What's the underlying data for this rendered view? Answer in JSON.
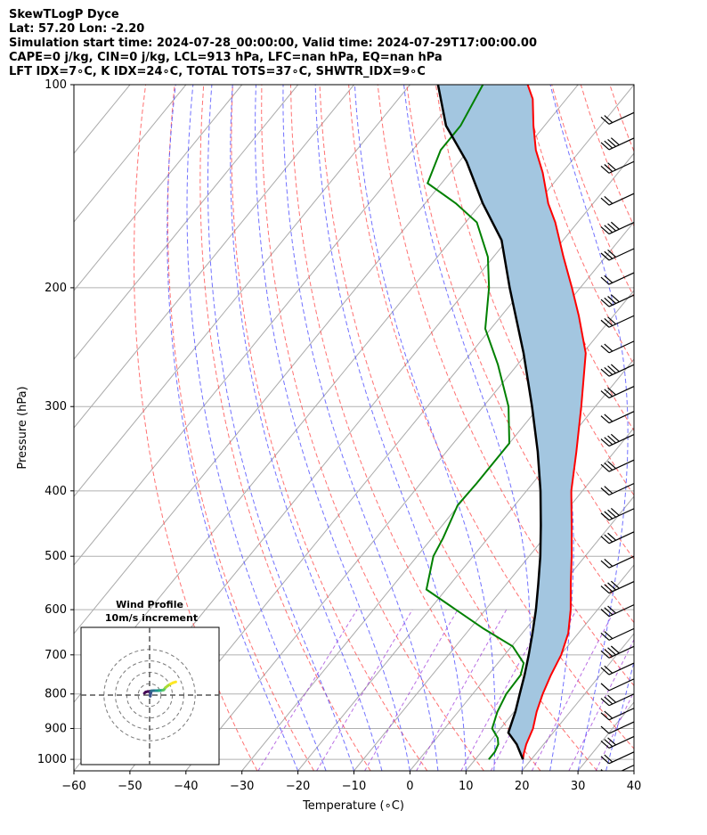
{
  "header": {
    "line1": "SkewTLogP Dyce",
    "line2": "Lat: 57.20   Lon: -2.20",
    "line3": "Simulation start time: 2024-07-28_00:00:00, Valid time: 2024-07-29T17:00:00.00",
    "line4": "CAPE=0 j/kg, CIN=0 j/kg, LCL=913 hPa, LFC=nan hPa, EQ=nan hPa",
    "line5": "LFT IDX=7∘C, K IDX=24∘C, TOTAL TOTS=37∘C, SHWTR_IDX=9∘C"
  },
  "inset": {
    "title_line1": "Wind Profile",
    "title_line2": "10m/s increment"
  },
  "colors": {
    "temperature": "#ff0000",
    "dewpoint": "#008000",
    "parcel": "#000000",
    "cape_fill": "#a3c6e0",
    "dry_adiabat": "#ff4d4d",
    "moist_adiabat": "#4d4dff",
    "mixing_ratio": "#9b30d9",
    "isotherm": "#aaaaaa"
  },
  "chart_data": {
    "type": "line",
    "title": "SkewTLogP Dyce",
    "xlabel": "Temperature (∘C)",
    "ylabel": "Pressure (hPa)",
    "xlim": [
      -60,
      40
    ],
    "ylim": [
      1040,
      100
    ],
    "y_scale": "log",
    "grid": true,
    "x_ticks": [
      "−60",
      "−50",
      "−40",
      "−30",
      "−20",
      "−10",
      "0",
      "10",
      "20",
      "30",
      "40"
    ],
    "y_ticks": [
      "100",
      "200",
      "300",
      "400",
      "500",
      "600",
      "700",
      "800",
      "900",
      "1000"
    ],
    "series": [
      {
        "key": "temperature",
        "points": [
          [
            18.5,
            1000
          ],
          [
            17.8,
            980
          ],
          [
            16.9,
            950
          ],
          [
            15.8,
            900
          ],
          [
            14.0,
            850
          ],
          [
            12.5,
            800
          ],
          [
            11.2,
            750
          ],
          [
            10.1,
            700
          ],
          [
            8.2,
            650
          ],
          [
            5.2,
            600
          ],
          [
            1.5,
            550
          ],
          [
            -2.4,
            500
          ],
          [
            -6.9,
            450
          ],
          [
            -12.0,
            400
          ],
          [
            -16.8,
            350
          ],
          [
            -22.5,
            300
          ],
          [
            -29.5,
            250
          ],
          [
            -36.2,
            220
          ],
          [
            -41.5,
            200
          ],
          [
            -47.5,
            180
          ],
          [
            -54.0,
            160
          ],
          [
            -58.0,
            150
          ],
          [
            -63.5,
            135
          ],
          [
            -68.0,
            125
          ],
          [
            -72.0,
            115
          ],
          [
            -76.0,
            105
          ],
          [
            -79.0,
            100
          ]
        ]
      },
      {
        "key": "dewpoint",
        "points": [
          [
            12.4,
            1000
          ],
          [
            12.4,
            975
          ],
          [
            11.9,
            950
          ],
          [
            10.9,
            930
          ],
          [
            8.5,
            900
          ],
          [
            7.0,
            850
          ],
          [
            6.0,
            800
          ],
          [
            5.8,
            750
          ],
          [
            4.6,
            720
          ],
          [
            0.2,
            680
          ],
          [
            -7.6,
            640
          ],
          [
            -23.5,
            560
          ],
          [
            -27.1,
            500
          ],
          [
            -28.0,
            470
          ],
          [
            -30.2,
            420
          ],
          [
            -30.0,
            390
          ],
          [
            -30.0,
            340
          ],
          [
            -35.5,
            300
          ],
          [
            -43.5,
            260
          ],
          [
            -51.0,
            230
          ],
          [
            -56.3,
            200
          ],
          [
            -61.0,
            180
          ],
          [
            -68.0,
            160
          ],
          [
            -74.5,
            150
          ],
          [
            -82.5,
            140
          ],
          [
            -85.0,
            125
          ],
          [
            -85.0,
            115
          ],
          [
            -87.0,
            100
          ]
        ]
      },
      {
        "key": "parcel",
        "points": [
          [
            18.5,
            1000
          ],
          [
            15.2,
            950
          ],
          [
            12.0,
            913
          ],
          [
            10.2,
            850
          ],
          [
            8.4,
            800
          ],
          [
            6.5,
            750
          ],
          [
            4.3,
            700
          ],
          [
            1.8,
            650
          ],
          [
            -1.0,
            600
          ],
          [
            -4.3,
            550
          ],
          [
            -8.0,
            500
          ],
          [
            -12.4,
            450
          ],
          [
            -17.5,
            400
          ],
          [
            -23.7,
            350
          ],
          [
            -31.3,
            300
          ],
          [
            -40.6,
            250
          ],
          [
            -52.6,
            200
          ],
          [
            -61.0,
            170
          ],
          [
            -69.7,
            150
          ],
          [
            -78.7,
            130
          ],
          [
            -87.6,
            115
          ],
          [
            -95.0,
            100
          ]
        ]
      }
    ],
    "wind_barbs": {
      "pressures_hPa": [
        1020,
        975,
        925,
        880,
        840,
        800,
        760,
        720,
        680,
        640,
        590,
        545,
        500,
        460,
        425,
        390,
        360,
        330,
        305,
        280,
        260,
        240,
        220,
        205,
        190,
        175,
        160,
        145,
        130,
        120,
        110
      ]
    },
    "hodograph": {
      "type": "scatter",
      "title": "Wind Profile",
      "subtitle": "10m/s increment",
      "rings_mps": [
        10,
        20,
        30,
        40
      ],
      "u": [
        -4.6,
        -3.4,
        -1.5,
        0.2,
        0.8,
        0.5,
        0.6,
        1.5,
        3.5,
        5.6,
        6.8,
        7.5,
        8.5,
        10.0,
        11.5,
        12.5,
        14.0,
        16.0,
        18.5,
        20.5,
        23.0
      ],
      "v": [
        1.6,
        2.7,
        3.2,
        2.7,
        1.2,
        -0.2,
        -1.0,
        3.7,
        3.9,
        3.9,
        3.9,
        4.0,
        4.0,
        4.1,
        4.3,
        4.6,
        6.6,
        8.2,
        9.8,
        10.8,
        11.6
      ]
    }
  }
}
